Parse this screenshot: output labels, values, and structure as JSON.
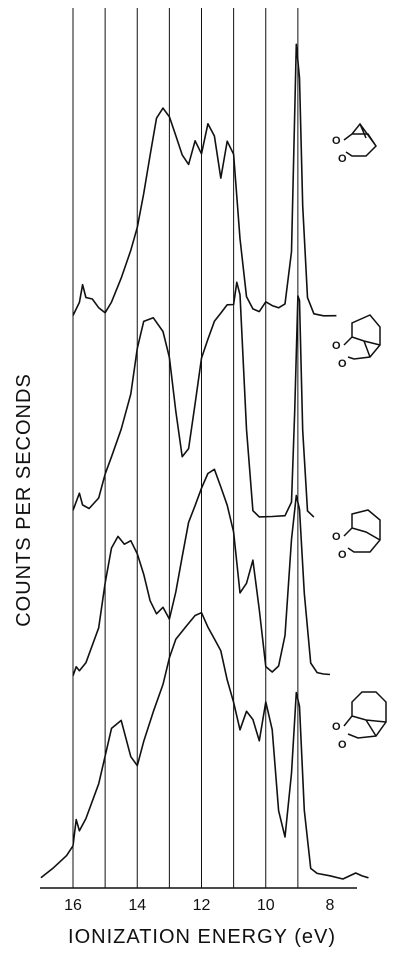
{
  "chart_data": {
    "type": "line",
    "xlabel": "IONIZATION ENERGY (eV)",
    "ylabel": "COUNTS PER SECONDS",
    "x_ticks": [
      16,
      14,
      12,
      10,
      8
    ],
    "x_gridlines": [
      16,
      15,
      14,
      13,
      12,
      11,
      10,
      9
    ],
    "xlim": [
      17.2,
      6.5
    ],
    "x_reversed": true,
    "grid": "vertical",
    "series": [
      {
        "stack_index": 0,
        "baseline": 0.02,
        "points": [
          [
            16.0,
            0.02
          ],
          [
            15.8,
            0.08
          ],
          [
            15.7,
            0.15
          ],
          [
            15.6,
            0.1
          ],
          [
            15.4,
            0.09
          ],
          [
            15.2,
            0.05
          ],
          [
            15.0,
            0.03
          ],
          [
            14.8,
            0.08
          ],
          [
            14.5,
            0.18
          ],
          [
            14.2,
            0.3
          ],
          [
            14.0,
            0.4
          ],
          [
            13.8,
            0.55
          ],
          [
            13.6,
            0.72
          ],
          [
            13.4,
            0.88
          ],
          [
            13.2,
            0.92
          ],
          [
            13.0,
            0.88
          ],
          [
            12.8,
            0.8
          ],
          [
            12.6,
            0.72
          ],
          [
            12.4,
            0.68
          ],
          [
            12.2,
            0.78
          ],
          [
            12.0,
            0.72
          ],
          [
            11.8,
            0.85
          ],
          [
            11.6,
            0.8
          ],
          [
            11.4,
            0.62
          ],
          [
            11.2,
            0.78
          ],
          [
            11.0,
            0.72
          ],
          [
            10.8,
            0.35
          ],
          [
            10.6,
            0.1
          ],
          [
            10.4,
            0.05
          ],
          [
            10.2,
            0.04
          ],
          [
            10.0,
            0.08
          ],
          [
            9.8,
            0.06
          ],
          [
            9.6,
            0.05
          ],
          [
            9.4,
            0.07
          ],
          [
            9.2,
            0.3
          ],
          [
            9.05,
            1.2
          ],
          [
            8.95,
            1.05
          ],
          [
            8.85,
            0.5
          ],
          [
            8.7,
            0.1
          ],
          [
            8.5,
            0.03
          ],
          [
            8.2,
            0.02
          ],
          [
            7.8,
            0.02
          ]
        ]
      },
      {
        "stack_index": 1,
        "baseline": 0.02,
        "points": [
          [
            16.0,
            0.05
          ],
          [
            15.8,
            0.15
          ],
          [
            15.7,
            0.08
          ],
          [
            15.5,
            0.06
          ],
          [
            15.2,
            0.12
          ],
          [
            15.0,
            0.25
          ],
          [
            14.8,
            0.35
          ],
          [
            14.5,
            0.5
          ],
          [
            14.2,
            0.7
          ],
          [
            14.0,
            0.95
          ],
          [
            13.8,
            1.1
          ],
          [
            13.5,
            1.12
          ],
          [
            13.2,
            1.05
          ],
          [
            13.0,
            0.9
          ],
          [
            12.8,
            0.6
          ],
          [
            12.6,
            0.35
          ],
          [
            12.4,
            0.4
          ],
          [
            12.2,
            0.65
          ],
          [
            12.0,
            0.9
          ],
          [
            11.8,
            1.0
          ],
          [
            11.6,
            1.1
          ],
          [
            11.4,
            1.15
          ],
          [
            11.2,
            1.2
          ],
          [
            11.0,
            1.2
          ],
          [
            10.9,
            1.32
          ],
          [
            10.8,
            1.25
          ],
          [
            10.6,
            0.5
          ],
          [
            10.4,
            0.05
          ],
          [
            10.2,
            0.02
          ],
          [
            9.8,
            0.02
          ],
          [
            9.4,
            0.02
          ],
          [
            9.2,
            0.1
          ],
          [
            9.1,
            0.6
          ],
          [
            9.0,
            1.25
          ],
          [
            8.95,
            1.22
          ],
          [
            8.85,
            0.5
          ],
          [
            8.7,
            0.05
          ],
          [
            8.5,
            0.02
          ]
        ]
      },
      {
        "stack_index": 2,
        "baseline": 0.02,
        "points": [
          [
            16.0,
            0.02
          ],
          [
            15.9,
            0.08
          ],
          [
            15.8,
            0.05
          ],
          [
            15.6,
            0.1
          ],
          [
            15.2,
            0.3
          ],
          [
            15.0,
            0.55
          ],
          [
            14.8,
            0.75
          ],
          [
            14.6,
            0.82
          ],
          [
            14.4,
            0.78
          ],
          [
            14.2,
            0.8
          ],
          [
            14.0,
            0.72
          ],
          [
            13.8,
            0.6
          ],
          [
            13.6,
            0.45
          ],
          [
            13.4,
            0.38
          ],
          [
            13.2,
            0.42
          ],
          [
            13.0,
            0.35
          ],
          [
            12.8,
            0.5
          ],
          [
            12.6,
            0.7
          ],
          [
            12.4,
            0.9
          ],
          [
            12.2,
            1.0
          ],
          [
            12.0,
            1.1
          ],
          [
            11.8,
            1.18
          ],
          [
            11.6,
            1.2
          ],
          [
            11.4,
            1.1
          ],
          [
            11.2,
            1.0
          ],
          [
            11.0,
            0.85
          ],
          [
            10.8,
            0.5
          ],
          [
            10.6,
            0.55
          ],
          [
            10.4,
            0.68
          ],
          [
            10.2,
            0.4
          ],
          [
            10.0,
            0.08
          ],
          [
            9.8,
            0.05
          ],
          [
            9.6,
            0.08
          ],
          [
            9.4,
            0.25
          ],
          [
            9.2,
            0.8
          ],
          [
            9.05,
            1.05
          ],
          [
            8.95,
            0.98
          ],
          [
            8.8,
            0.5
          ],
          [
            8.6,
            0.1
          ],
          [
            8.4,
            0.04
          ],
          [
            8.2,
            0.03
          ],
          [
            8.0,
            0.03
          ]
        ]
      },
      {
        "stack_index": 3,
        "baseline": 0.02,
        "points": [
          [
            17.0,
            0.02
          ],
          [
            16.6,
            0.08
          ],
          [
            16.2,
            0.15
          ],
          [
            16.0,
            0.2
          ],
          [
            15.9,
            0.35
          ],
          [
            15.8,
            0.28
          ],
          [
            15.6,
            0.35
          ],
          [
            15.2,
            0.55
          ],
          [
            15.0,
            0.7
          ],
          [
            14.8,
            0.85
          ],
          [
            14.5,
            0.9
          ],
          [
            14.2,
            0.7
          ],
          [
            14.0,
            0.65
          ],
          [
            13.8,
            0.78
          ],
          [
            13.5,
            0.95
          ],
          [
            13.2,
            1.1
          ],
          [
            13.0,
            1.25
          ],
          [
            12.8,
            1.35
          ],
          [
            12.5,
            1.42
          ],
          [
            12.2,
            1.48
          ],
          [
            12.0,
            1.5
          ],
          [
            11.8,
            1.42
          ],
          [
            11.6,
            1.35
          ],
          [
            11.4,
            1.28
          ],
          [
            11.2,
            1.12
          ],
          [
            11.0,
            1.0
          ],
          [
            10.8,
            0.85
          ],
          [
            10.6,
            0.95
          ],
          [
            10.4,
            0.9
          ],
          [
            10.2,
            0.78
          ],
          [
            10.0,
            1.0
          ],
          [
            9.8,
            0.85
          ],
          [
            9.6,
            0.4
          ],
          [
            9.4,
            0.25
          ],
          [
            9.2,
            0.6
          ],
          [
            9.05,
            1.05
          ],
          [
            8.95,
            0.98
          ],
          [
            8.8,
            0.4
          ],
          [
            8.6,
            0.08
          ],
          [
            8.4,
            0.05
          ],
          [
            8.0,
            0.03
          ],
          [
            7.6,
            0.02
          ],
          [
            7.2,
            0.05
          ],
          [
            7.0,
            0.03
          ],
          [
            6.8,
            0.02
          ]
        ]
      }
    ]
  }
}
